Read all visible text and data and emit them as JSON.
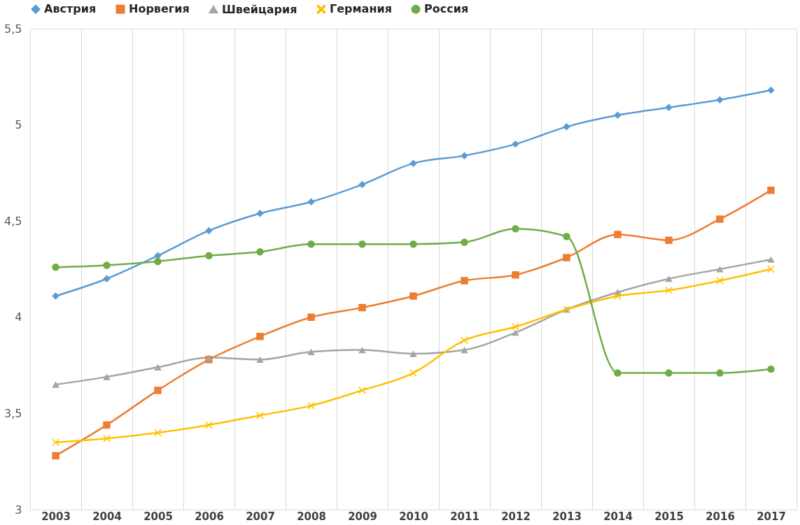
{
  "chart_data": {
    "type": "line",
    "categories": [
      "2003",
      "2004",
      "2005",
      "2006",
      "2007",
      "2008",
      "2009",
      "2010",
      "2011",
      "2012",
      "2013",
      "2014",
      "2015",
      "2016",
      "2017"
    ],
    "series": [
      {
        "name": "Австрия",
        "color": "#5b9bd5",
        "marker": "diamond",
        "values": [
          4.11,
          4.2,
          4.32,
          4.45,
          4.54,
          4.6,
          4.69,
          4.8,
          4.84,
          4.9,
          4.99,
          5.05,
          5.09,
          5.13,
          5.18
        ]
      },
      {
        "name": "Норвегия",
        "color": "#ed7d31",
        "marker": "square",
        "values": [
          3.28,
          3.44,
          3.62,
          3.78,
          3.9,
          4.0,
          4.05,
          4.11,
          4.19,
          4.22,
          4.31,
          4.43,
          4.4,
          4.51,
          4.66
        ]
      },
      {
        "name": "Швейцария",
        "color": "#a5a5a5",
        "marker": "triangle",
        "values": [
          3.65,
          3.69,
          3.74,
          3.79,
          3.78,
          3.82,
          3.83,
          3.81,
          3.83,
          3.92,
          4.04,
          4.13,
          4.2,
          4.25,
          4.3
        ]
      },
      {
        "name": "Германия",
        "color": "#ffc000",
        "marker": "cross",
        "values": [
          3.35,
          3.37,
          3.4,
          3.44,
          3.49,
          3.54,
          3.62,
          3.71,
          3.88,
          3.95,
          4.04,
          4.11,
          4.14,
          4.19,
          4.25
        ]
      },
      {
        "name": "Россия",
        "color": "#70ad47",
        "marker": "circle",
        "values": [
          4.26,
          4.27,
          4.29,
          4.32,
          4.34,
          4.38,
          4.38,
          4.38,
          4.39,
          4.46,
          4.42,
          3.71,
          3.71,
          3.71,
          3.73
        ]
      }
    ],
    "ylim": [
      3,
      5.5
    ],
    "yticks": [
      3,
      {
        "value": 3.5,
        "label": "3,5"
      },
      4,
      {
        "value": 4.5,
        "label": "4,5"
      },
      5,
      {
        "value": 5.5,
        "label": "5,5"
      }
    ],
    "grid": "x",
    "legend": "top",
    "line_style": "solid"
  }
}
